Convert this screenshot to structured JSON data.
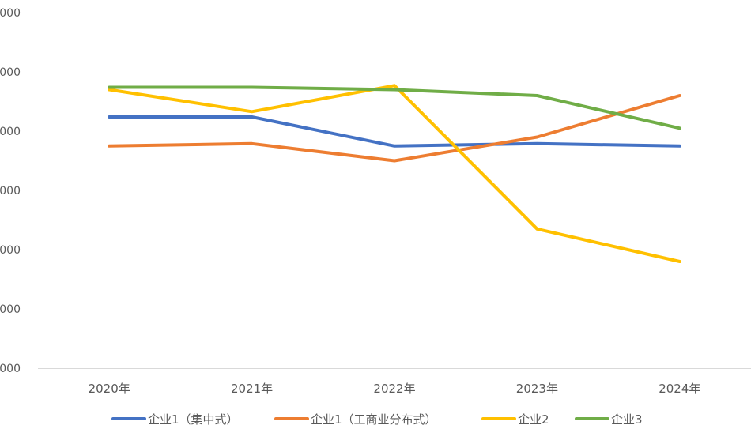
{
  "chart_data": {
    "type": "line",
    "categories": [
      "2020年",
      "2021年",
      "2022年",
      "2023年",
      "2024年"
    ],
    "y_tick_labels": [
      "000",
      "000",
      "000",
      "000",
      "000",
      "000",
      "000"
    ],
    "ylim": [
      0,
      6
    ],
    "grid": false,
    "legend_position": "bottom",
    "series": [
      {
        "name": "企业1（集中式）",
        "color": "#4472C4",
        "values": [
          4.24,
          4.24,
          3.75,
          3.79,
          3.75
        ]
      },
      {
        "name": "企业1（工商业分布式）",
        "color": "#ED7D31",
        "values": [
          3.75,
          3.79,
          3.5,
          3.9,
          4.6
        ]
      },
      {
        "name": "企业2",
        "color": "#FFC000",
        "values": [
          4.7,
          4.33,
          4.77,
          2.35,
          1.8
        ]
      },
      {
        "name": "企业3",
        "color": "#70AD47",
        "values": [
          4.74,
          4.74,
          4.7,
          4.6,
          4.05
        ]
      }
    ]
  }
}
